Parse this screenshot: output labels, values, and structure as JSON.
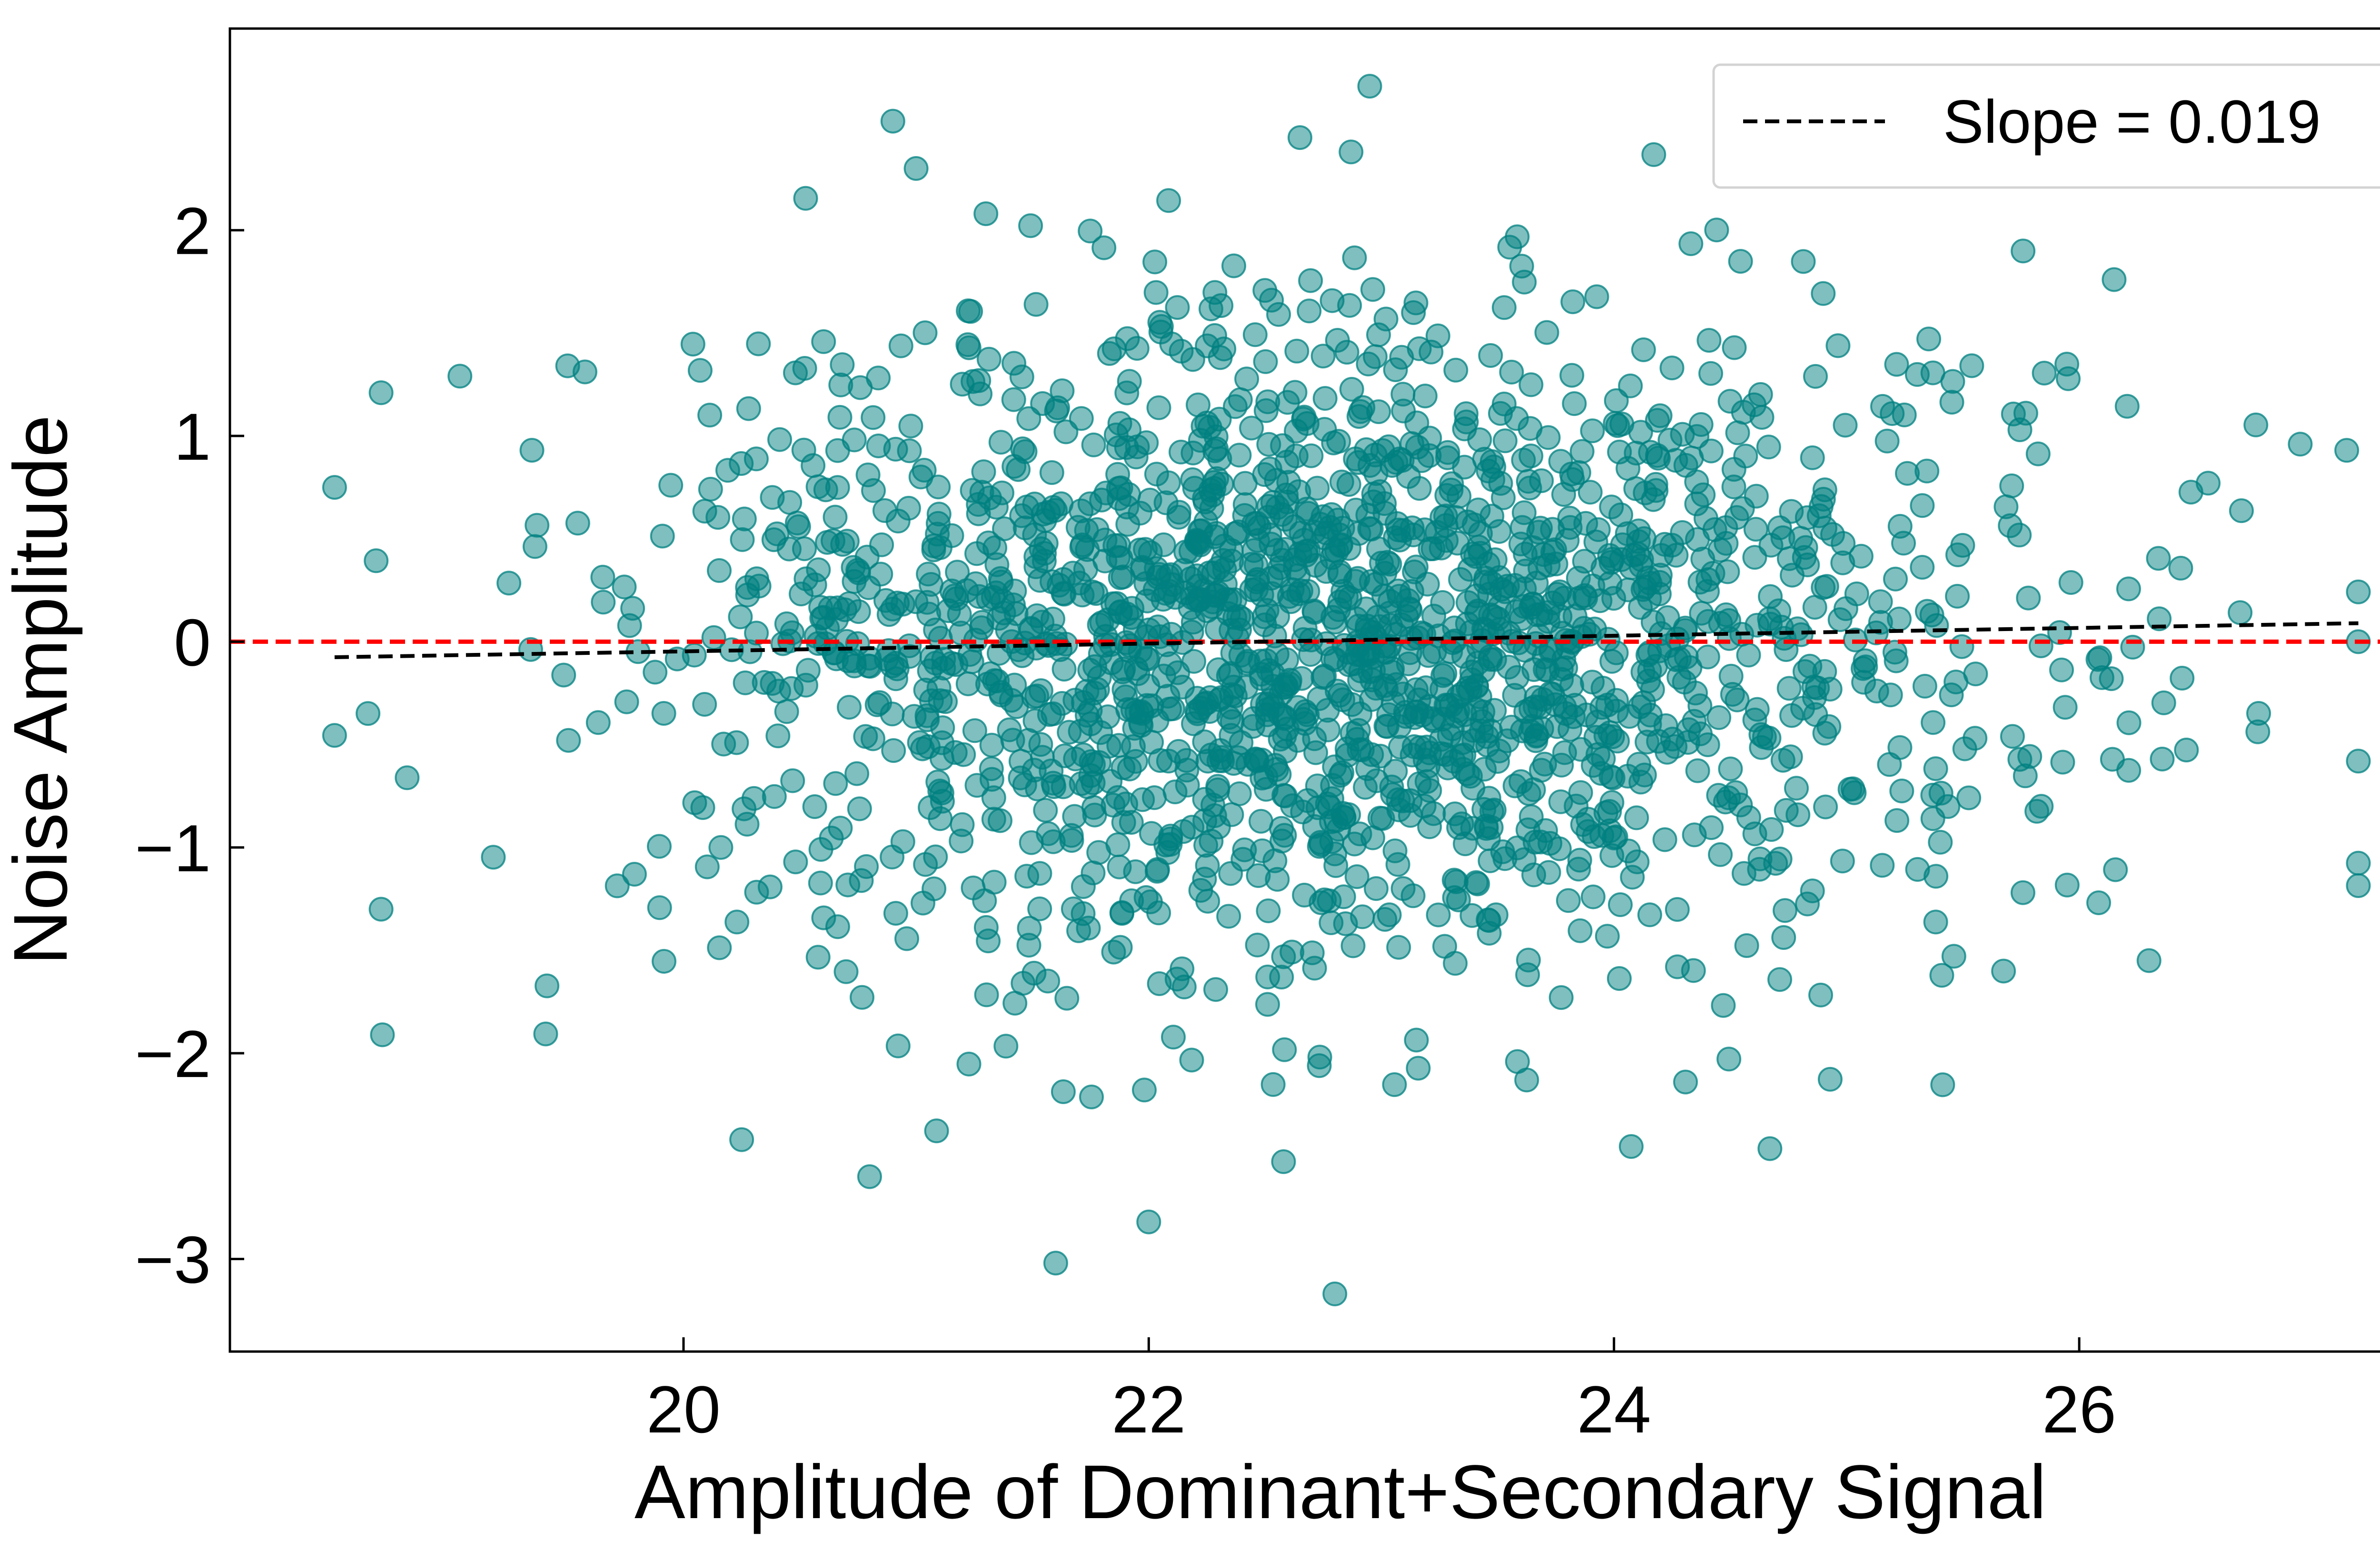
{
  "chart_data": {
    "type": "scatter",
    "xlabel": "Amplitude of Dominant+Secondary Signal",
    "ylabel": "Noise Amplitude",
    "xlim": [
      18.05,
      27.6
    ],
    "ylim": [
      -3.45,
      2.98
    ],
    "xticks": [
      20,
      22,
      24,
      26
    ],
    "xtick_labels": [
      "20",
      "22",
      "24",
      "26"
    ],
    "yticks": [
      -3,
      -2,
      -1,
      0,
      1,
      2
    ],
    "ytick_labels": [
      "−3",
      "−2",
      "−1",
      "0",
      "1",
      "2"
    ],
    "grid": false,
    "legend_position": "top-right",
    "colors": {
      "points": "#008080",
      "fit_line": "#000000",
      "zero_line": "#ff0000"
    },
    "reference_line": {
      "y": 0,
      "style": "dashed",
      "color": "#ff0000"
    },
    "fit_line": {
      "label": "Slope = 0.019",
      "slope": 0.019,
      "intercept": -0.427,
      "x_range": [
        18.5,
        27.2
      ]
    },
    "series": [
      {
        "name": "points",
        "n": 2000,
        "seed": 7,
        "x_mean": 22.8,
        "x_std": 1.45,
        "y_std": 0.78,
        "x_clip": [
          18.5,
          27.2
        ],
        "highlighted_outliers": [
          {
            "x": 22.95,
            "y": 2.7
          },
          {
            "x": 20.9,
            "y": 2.53
          },
          {
            "x": 22.65,
            "y": 2.45
          },
          {
            "x": 21.0,
            "y": 2.3
          },
          {
            "x": 21.3,
            "y": 2.08
          },
          {
            "x": 22.8,
            "y": -3.17
          },
          {
            "x": 21.6,
            "y": -3.02
          },
          {
            "x": 22.0,
            "y": -2.82
          },
          {
            "x": 20.8,
            "y": -2.6
          },
          {
            "x": 20.25,
            "y": -2.42
          },
          {
            "x": 18.5,
            "y": 0.75
          },
          {
            "x": 18.7,
            "y": 1.21
          },
          {
            "x": 18.7,
            "y": -1.3
          },
          {
            "x": 27.2,
            "y": 0.0
          },
          {
            "x": 27.15,
            "y": 0.93
          },
          {
            "x": 26.95,
            "y": 0.96
          },
          {
            "x": 26.15,
            "y": 1.76
          },
          {
            "x": 26.3,
            "y": -1.55
          }
        ]
      }
    ]
  }
}
